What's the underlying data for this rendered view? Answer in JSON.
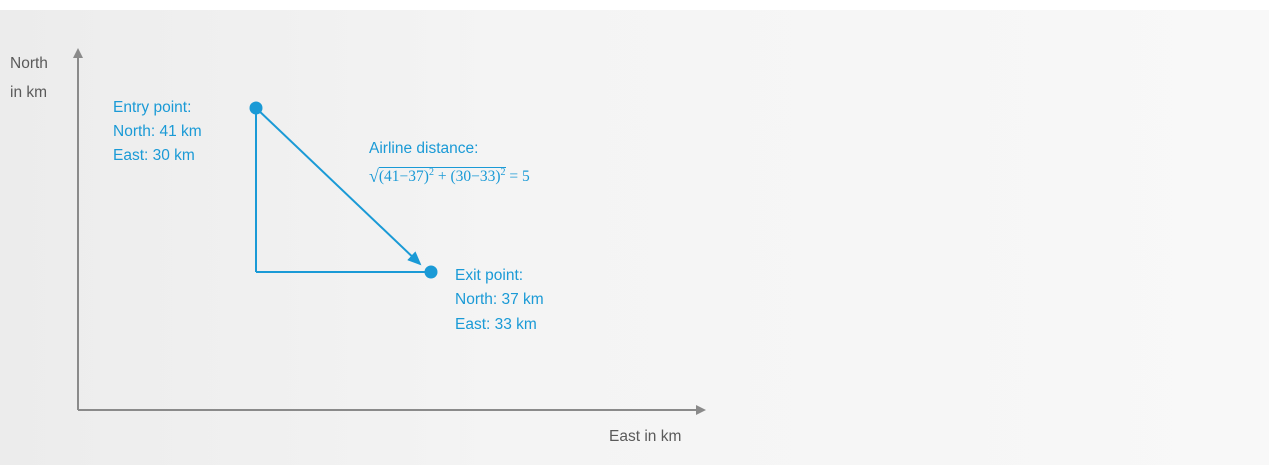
{
  "axes": {
    "y_label_line1": "North",
    "y_label_line2": "in km",
    "x_label": "East in km"
  },
  "entry_point": {
    "title": "Entry point:",
    "north": "North: 41 km",
    "east": "East: 30 km"
  },
  "exit_point": {
    "title": "Exit point:",
    "north": "North: 37 km",
    "east": "East: 33 km"
  },
  "distance": {
    "title": "Airline distance:",
    "term1": "(41−37)",
    "exp1": "2",
    "plus": " + ",
    "term2": "(30−33)",
    "exp2": "2",
    "result": " = 5"
  },
  "colors": {
    "accent": "#1a9ad6",
    "axis": "#8a8a8a",
    "text": "#5a5a5a"
  }
}
